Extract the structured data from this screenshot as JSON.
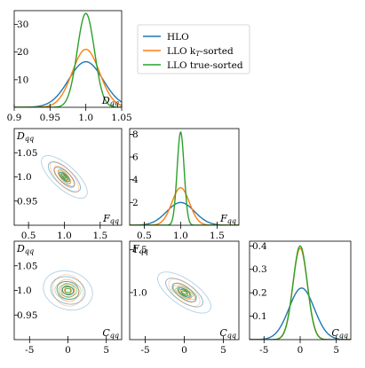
{
  "colors": {
    "hlo": "#1f77b4",
    "llo_kt": "#ff7f0e",
    "llo_true": "#2ca02c"
  },
  "legend": {
    "position": "top-right",
    "entries": [
      {
        "key": "hlo",
        "label": "HLO"
      },
      {
        "key": "llo_kt",
        "label": "LLO k",
        "sub": "T",
        "suffix": "-sorted"
      },
      {
        "key": "llo_true",
        "label": "LLO true-sorted"
      }
    ]
  },
  "chart_data": [
    {
      "id": "D_marginal",
      "type": "line",
      "xlabel": "D",
      "xlabel_sub": "qq",
      "xlim": [
        0.9,
        1.05
      ],
      "ylim": [
        0,
        35
      ],
      "xticks": [
        "0.9",
        "0.95",
        "1.0",
        "1.05"
      ],
      "xtick_values": [
        0.9,
        0.95,
        1.0,
        1.05
      ],
      "yticks": [
        "10",
        "20",
        "30"
      ],
      "ytick_values": [
        10,
        20,
        30
      ],
      "series": [
        {
          "key": "hlo",
          "peak": 1.0,
          "height": 16.5,
          "width": 0.024
        },
        {
          "key": "llo_kt",
          "peak": 1.0,
          "height": 21,
          "width": 0.019
        },
        {
          "key": "llo_true",
          "peak": 1.0,
          "height": 34,
          "width": 0.012
        }
      ]
    },
    {
      "id": "F_marginal",
      "type": "line",
      "xlabel": "F",
      "xlabel_sub": "qq",
      "xlim": [
        0.3,
        1.8
      ],
      "ylim": [
        0,
        8.5
      ],
      "xticks": [
        "0.5",
        "1.0",
        "1.5"
      ],
      "xtick_values": [
        0.5,
        1.0,
        1.5
      ],
      "yticks": [
        "2",
        "4",
        "6",
        "8"
      ],
      "ytick_values": [
        2,
        4,
        6,
        8
      ],
      "series": [
        {
          "key": "hlo",
          "peak": 1.0,
          "height": 2.0,
          "width": 0.19
        },
        {
          "key": "llo_kt",
          "peak": 1.0,
          "height": 3.3,
          "width": 0.12
        },
        {
          "key": "llo_true",
          "peak": 1.0,
          "height": 8.2,
          "width": 0.048
        }
      ]
    },
    {
      "id": "C_marginal",
      "type": "line",
      "xlabel": "C",
      "xlabel_sub": "qq",
      "xlim": [
        -7,
        7
      ],
      "ylim": [
        0,
        0.42
      ],
      "xticks": [
        "-5",
        "0",
        "5"
      ],
      "xtick_values": [
        -5,
        0,
        5
      ],
      "yticks": [
        "0.1",
        "0.2",
        "0.3",
        "0.4"
      ],
      "ytick_values": [
        0.1,
        0.2,
        0.3,
        0.4
      ],
      "series": [
        {
          "key": "hlo",
          "peak": 0.2,
          "height": 0.22,
          "width": 1.75
        },
        {
          "key": "llo_kt",
          "peak": 0.0,
          "height": 0.39,
          "width": 1.0
        },
        {
          "key": "llo_true",
          "peak": 0.0,
          "height": 0.4,
          "width": 0.98
        }
      ]
    },
    {
      "id": "D_vs_F",
      "type": "contour",
      "xlabel": "F",
      "xlabel_sub": "qq",
      "ylabel": "D",
      "ylabel_sub": "qq",
      "xlim": [
        0.3,
        1.8
      ],
      "ylim": [
        0.9,
        1.1
      ],
      "xticks": [
        "0.5",
        "1.0",
        "1.5"
      ],
      "xtick_values": [
        0.5,
        1.0,
        1.5
      ],
      "yticks": [
        "0.95",
        "1.0",
        "1.05"
      ],
      "ytick_values": [
        0.95,
        1.0,
        1.05
      ],
      "center": [
        1.0,
        1.0
      ],
      "series": [
        {
          "key": "hlo",
          "sx": 0.16,
          "sy": 0.022,
          "rho": -0.72
        },
        {
          "key": "llo_kt",
          "sx": 0.1,
          "sy": 0.016,
          "rho": -0.72
        },
        {
          "key": "llo_true",
          "sx": 0.04,
          "sy": 0.007,
          "rho": -0.8
        }
      ]
    },
    {
      "id": "D_vs_C",
      "type": "contour",
      "xlabel": "C",
      "xlabel_sub": "qq",
      "ylabel": "D",
      "ylabel_sub": "qq",
      "xlim": [
        -7,
        7
      ],
      "ylim": [
        0.9,
        1.1
      ],
      "xticks": [
        "-5",
        "0",
        "5"
      ],
      "xtick_values": [
        -5,
        0,
        5
      ],
      "yticks": [
        "0.95",
        "1.0",
        "1.05"
      ],
      "ytick_values": [
        0.95,
        1.0,
        1.05
      ],
      "center": [
        0.0,
        1.0
      ],
      "series": [
        {
          "key": "hlo",
          "sx": 1.6,
          "sy": 0.02,
          "rho": -0.15
        },
        {
          "key": "llo_kt",
          "sx": 1.0,
          "sy": 0.016,
          "rho": -0.1
        },
        {
          "key": "llo_true",
          "sx": 0.85,
          "sy": 0.009,
          "rho": -0.05
        }
      ]
    },
    {
      "id": "F_vs_C",
      "type": "contour",
      "xlabel": "C",
      "xlabel_sub": "qq",
      "ylabel": "F",
      "ylabel_sub": "qq",
      "xlim": [
        -7,
        7
      ],
      "ylim": [
        0.45,
        1.6
      ],
      "xticks": [
        "-5",
        "0",
        "5"
      ],
      "xtick_values": [
        -5,
        0,
        5
      ],
      "yticks": [
        "1.0",
        "1.5"
      ],
      "ytick_values": [
        1.0,
        1.5
      ],
      "center": [
        0.0,
        1.0
      ],
      "series": [
        {
          "key": "hlo",
          "sx": 1.7,
          "sy": 0.12,
          "rho": -0.68
        },
        {
          "key": "llo_kt",
          "sx": 1.0,
          "sy": 0.08,
          "rho": -0.62
        },
        {
          "key": "llo_true",
          "sx": 0.8,
          "sy": 0.04,
          "rho": -0.62
        }
      ]
    }
  ]
}
